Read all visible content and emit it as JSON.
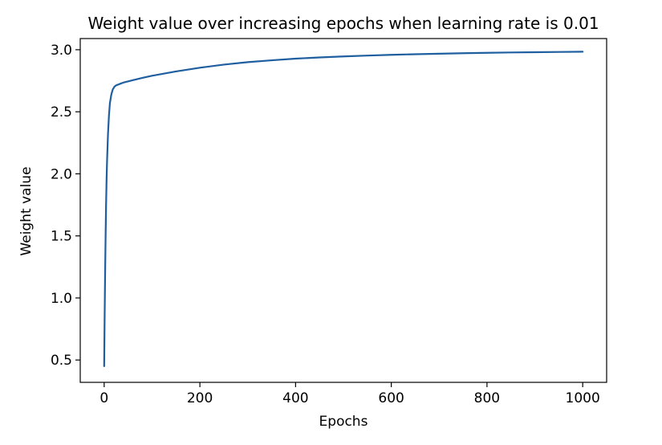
{
  "chart_data": {
    "type": "line",
    "title": "Weight value over increasing epochs when learning rate is 0.01",
    "xlabel": "Epochs",
    "ylabel": "Weight value",
    "xlim": [
      -50,
      1050
    ],
    "ylim": [
      0.32,
      3.09
    ],
    "xticks": [
      0,
      200,
      400,
      600,
      800,
      1000
    ],
    "yticks": [
      0.5,
      1.0,
      1.5,
      2.0,
      2.5,
      3.0
    ],
    "xtick_labels": [
      "0",
      "200",
      "400",
      "600",
      "800",
      "1000"
    ],
    "ytick_labels": [
      "0.5",
      "1.0",
      "1.5",
      "2.0",
      "2.5",
      "3.0"
    ],
    "grid": false,
    "line_color": "#1f5fa0",
    "series": [
      {
        "x": [
          0,
          1,
          2,
          3,
          4,
          5,
          6,
          8,
          10,
          12,
          15,
          18,
          22,
          26,
          30,
          35,
          40,
          50,
          60,
          80,
          100,
          150,
          200,
          250,
          300,
          350,
          400,
          450,
          500,
          550,
          600,
          650,
          700,
          750,
          800,
          850,
          900,
          950,
          1000
        ],
        "y": [
          0.45,
          0.85,
          1.2,
          1.5,
          1.75,
          1.95,
          2.1,
          2.32,
          2.47,
          2.57,
          2.64,
          2.68,
          2.705,
          2.715,
          2.72,
          2.728,
          2.735,
          2.745,
          2.755,
          2.773,
          2.79,
          2.825,
          2.855,
          2.88,
          2.9,
          2.915,
          2.928,
          2.938,
          2.946,
          2.953,
          2.959,
          2.964,
          2.968,
          2.972,
          2.975,
          2.978,
          2.98,
          2.982,
          2.984
        ]
      }
    ]
  }
}
